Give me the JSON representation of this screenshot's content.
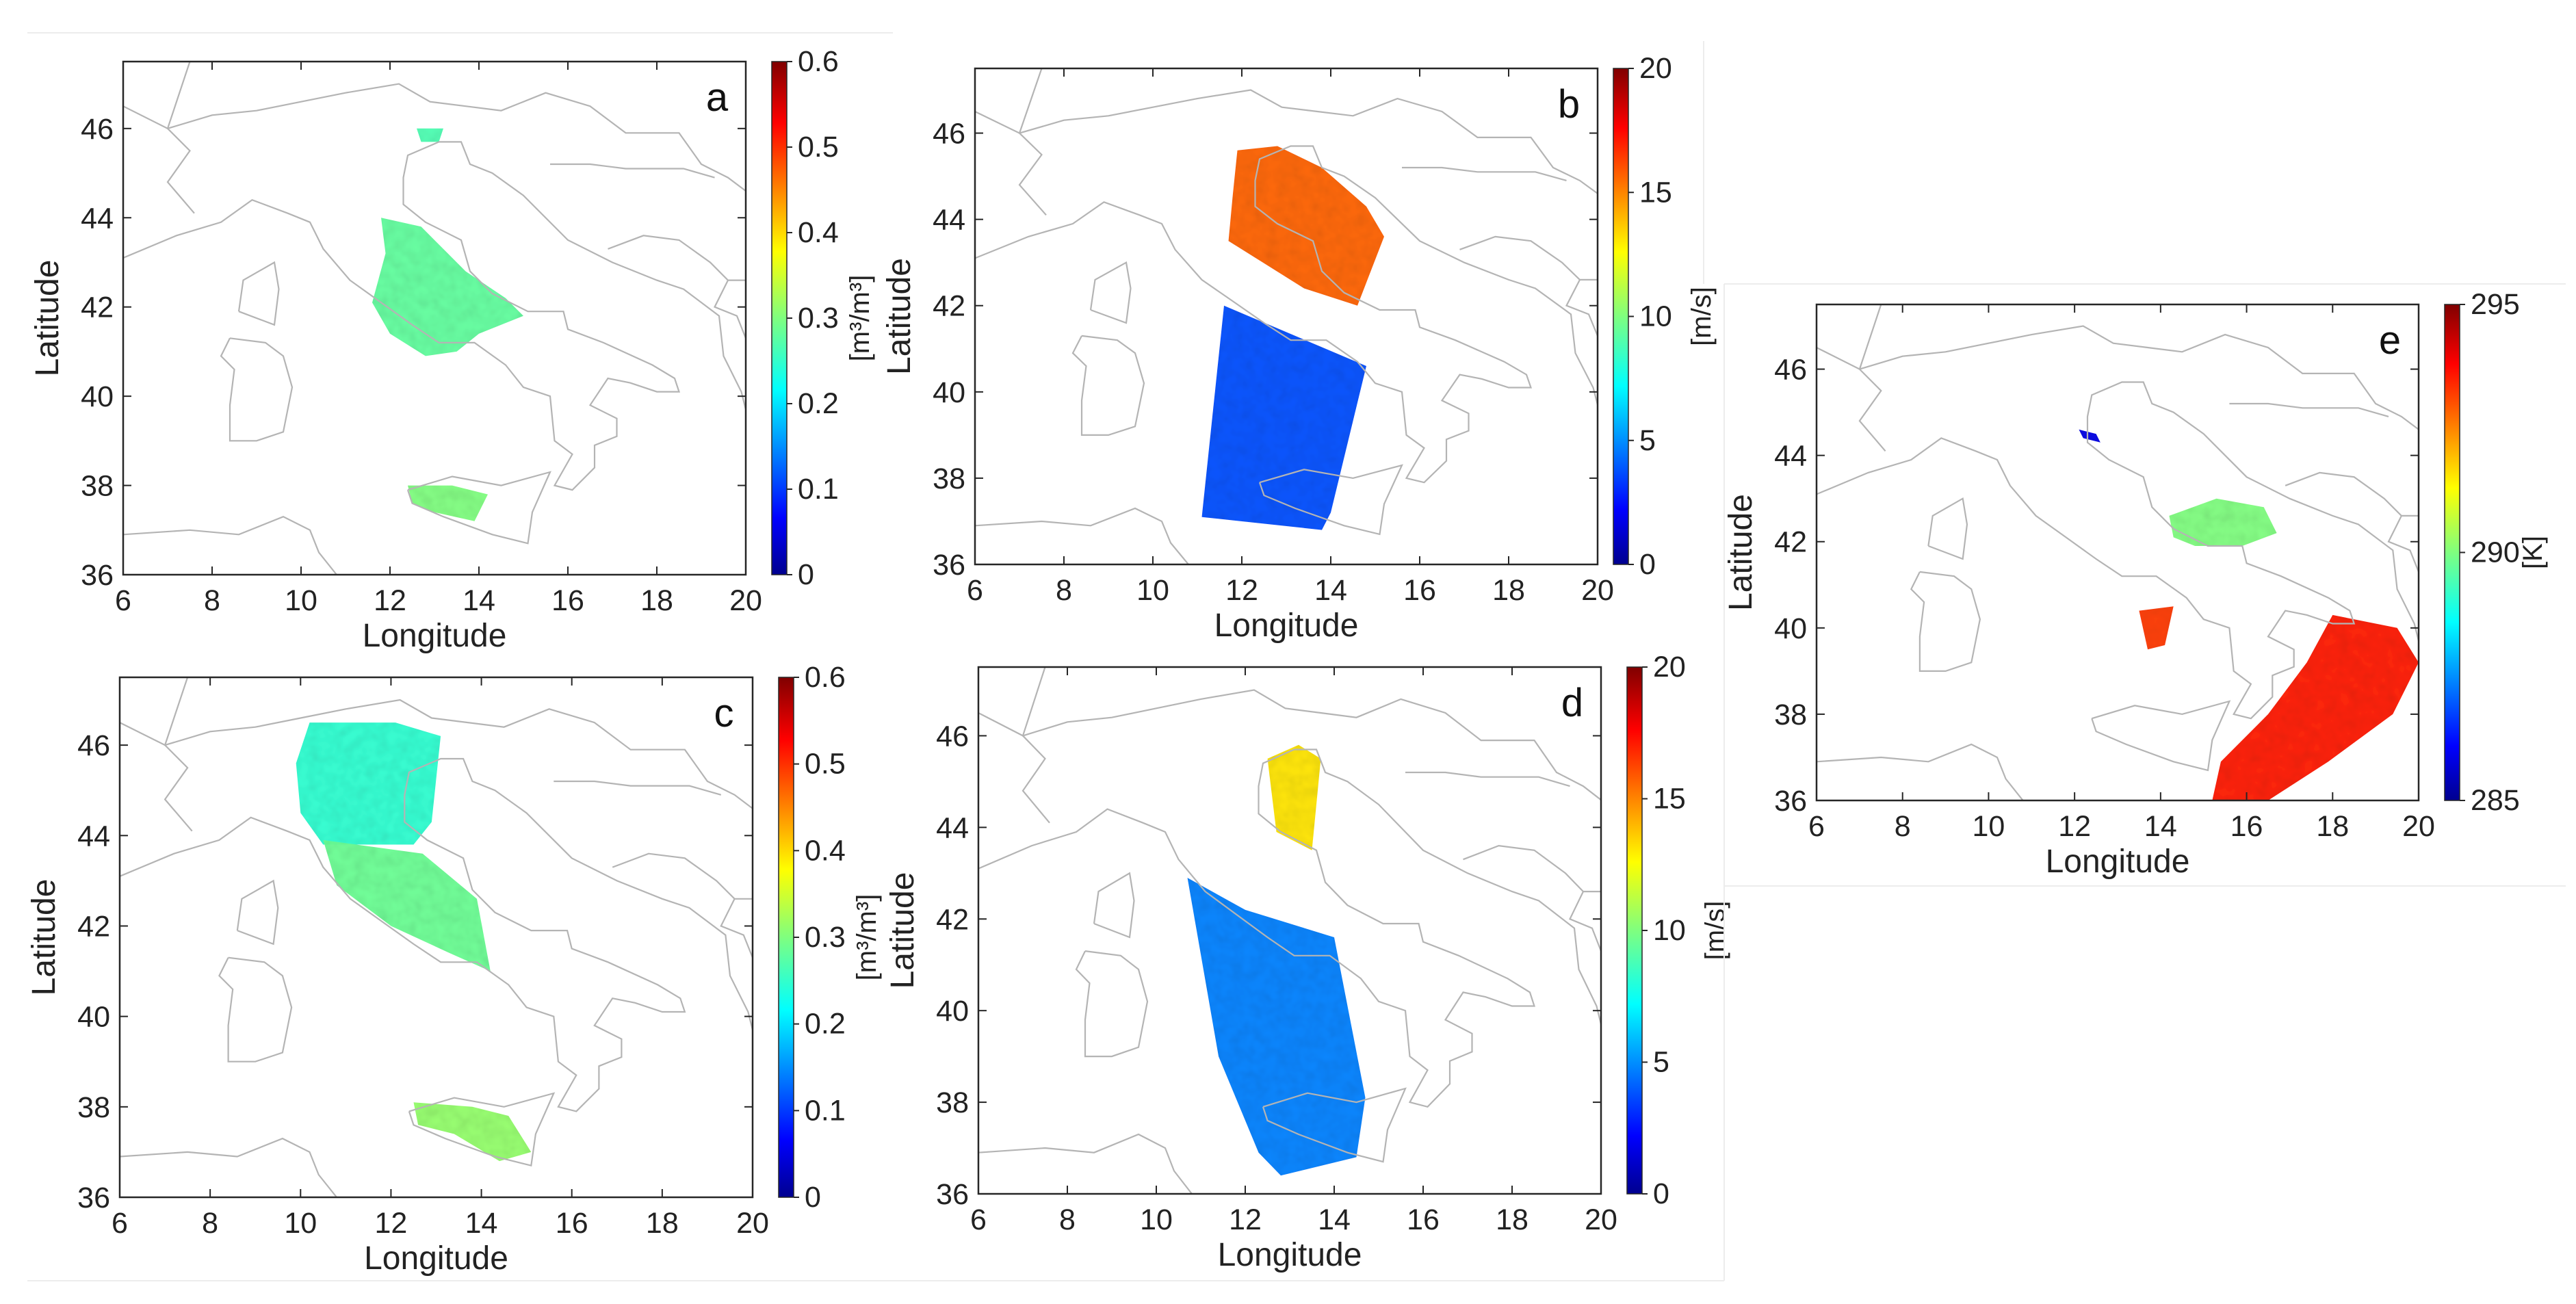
{
  "chart_data": [
    {
      "type": "heatmap",
      "panel_label": "a",
      "xlabel": "Longitude",
      "ylabel": "Latitude",
      "xlim": [
        6,
        20
      ],
      "ylim": [
        36,
        47.5
      ],
      "xticks": [
        6,
        8,
        10,
        12,
        14,
        16,
        18,
        20
      ],
      "yticks": [
        36,
        38,
        40,
        42,
        44,
        46
      ],
      "colorbar": {
        "min": 0,
        "max": 0.6,
        "ticks": [
          "0",
          "0.1",
          "0.2",
          "0.3",
          "0.4",
          "0.5",
          "0.6"
        ],
        "unit": "[m³/m³]",
        "colormap": "jet"
      },
      "data_regions": [
        {
          "lon": [
            12.6,
            13.2
          ],
          "lat": [
            45.7,
            46.0
          ],
          "approx_value": 0.27
        },
        {
          "lon": [
            11.6,
            15.0
          ],
          "lat": [
            40.9,
            44.0
          ],
          "approx_value": 0.28
        },
        {
          "lon": [
            12.4,
            14.2
          ],
          "lat": [
            37.2,
            38.0
          ],
          "approx_value": 0.3
        }
      ]
    },
    {
      "type": "heatmap",
      "panel_label": "b",
      "xlabel": "Longitude",
      "ylabel": "Latitude",
      "xlim": [
        6,
        20
      ],
      "ylim": [
        36,
        47.5
      ],
      "xticks": [
        6,
        8,
        10,
        12,
        14,
        16,
        18,
        20
      ],
      "yticks": [
        36,
        38,
        40,
        42,
        44,
        46
      ],
      "colorbar": {
        "min": 0,
        "max": 20,
        "ticks": [
          "0",
          "5",
          "10",
          "15",
          "20"
        ],
        "unit": "[m/s]",
        "colormap": "jet"
      },
      "data_regions": [
        {
          "lon": [
            11.7,
            15.2
          ],
          "lat": [
            42.0,
            45.7
          ],
          "approx_value": 16
        },
        {
          "lon": [
            11.0,
            14.8
          ],
          "lat": [
            36.8,
            42.0
          ],
          "approx_value": 4
        }
      ]
    },
    {
      "type": "heatmap",
      "panel_label": "c",
      "xlabel": "Longitude",
      "ylabel": "Latitude",
      "xlim": [
        6,
        20
      ],
      "ylim": [
        36,
        47.5
      ],
      "xticks": [
        6,
        8,
        10,
        12,
        14,
        16,
        18,
        20
      ],
      "yticks": [
        36,
        38,
        40,
        42,
        44,
        46
      ],
      "colorbar": {
        "min": 0,
        "max": 0.6,
        "ticks": [
          "0",
          "0.1",
          "0.2",
          "0.3",
          "0.4",
          "0.5",
          "0.6"
        ],
        "unit": "[m³/m³]",
        "colormap": "jet"
      },
      "data_regions": [
        {
          "lon": [
            9.9,
            13.1
          ],
          "lat": [
            43.5,
            46.5
          ],
          "approx_value": 0.27
        },
        {
          "lon": [
            10.5,
            14.2
          ],
          "lat": [
            40.9,
            43.9
          ],
          "approx_value": 0.3
        },
        {
          "lon": [
            12.5,
            15.1
          ],
          "lat": [
            36.8,
            38.1
          ],
          "approx_value": 0.32
        }
      ]
    },
    {
      "type": "heatmap",
      "panel_label": "d",
      "xlabel": "Longitude",
      "ylabel": "Latitude",
      "xlim": [
        6,
        20
      ],
      "ylim": [
        36,
        47.5
      ],
      "xticks": [
        6,
        8,
        10,
        12,
        14,
        16,
        18,
        20
      ],
      "yticks": [
        36,
        38,
        40,
        42,
        44,
        46
      ],
      "colorbar": {
        "min": 0,
        "max": 20,
        "ticks": [
          "0",
          "5",
          "10",
          "15",
          "20"
        ],
        "unit": "[m/s]",
        "colormap": "jet"
      },
      "data_regions": [
        {
          "lon": [
            12.5,
            13.7
          ],
          "lat": [
            43.5,
            45.8
          ],
          "approx_value": 13
        },
        {
          "lon": [
            10.7,
            14.7
          ],
          "lat": [
            36.4,
            42.9
          ],
          "approx_value": 5
        }
      ]
    },
    {
      "type": "heatmap",
      "panel_label": "e",
      "xlabel": "Longitude",
      "ylabel": "Latitude",
      "xlim": [
        6,
        20
      ],
      "ylim": [
        36,
        47.5
      ],
      "xticks": [
        6,
        8,
        10,
        12,
        14,
        16,
        18,
        20
      ],
      "yticks": [
        36,
        38,
        40,
        42,
        44,
        46
      ],
      "colorbar": {
        "min": 285,
        "max": 295,
        "ticks": [
          "285",
          "290",
          "295"
        ],
        "unit": "[K]",
        "colormap": "jet"
      },
      "data_regions": [
        {
          "lon": [
            12.1,
            12.6
          ],
          "lat": [
            44.3,
            44.6
          ],
          "approx_value": 286
        },
        {
          "lon": [
            14.2,
            16.7
          ],
          "lat": [
            41.9,
            43.0
          ],
          "approx_value": 290
        },
        {
          "lon": [
            13.5,
            14.3
          ],
          "lat": [
            39.5,
            40.5
          ],
          "approx_value": 293
        },
        {
          "lon": [
            15.2,
            20.0
          ],
          "lat": [
            36.0,
            40.3
          ],
          "approx_value": 293.5
        }
      ]
    }
  ]
}
